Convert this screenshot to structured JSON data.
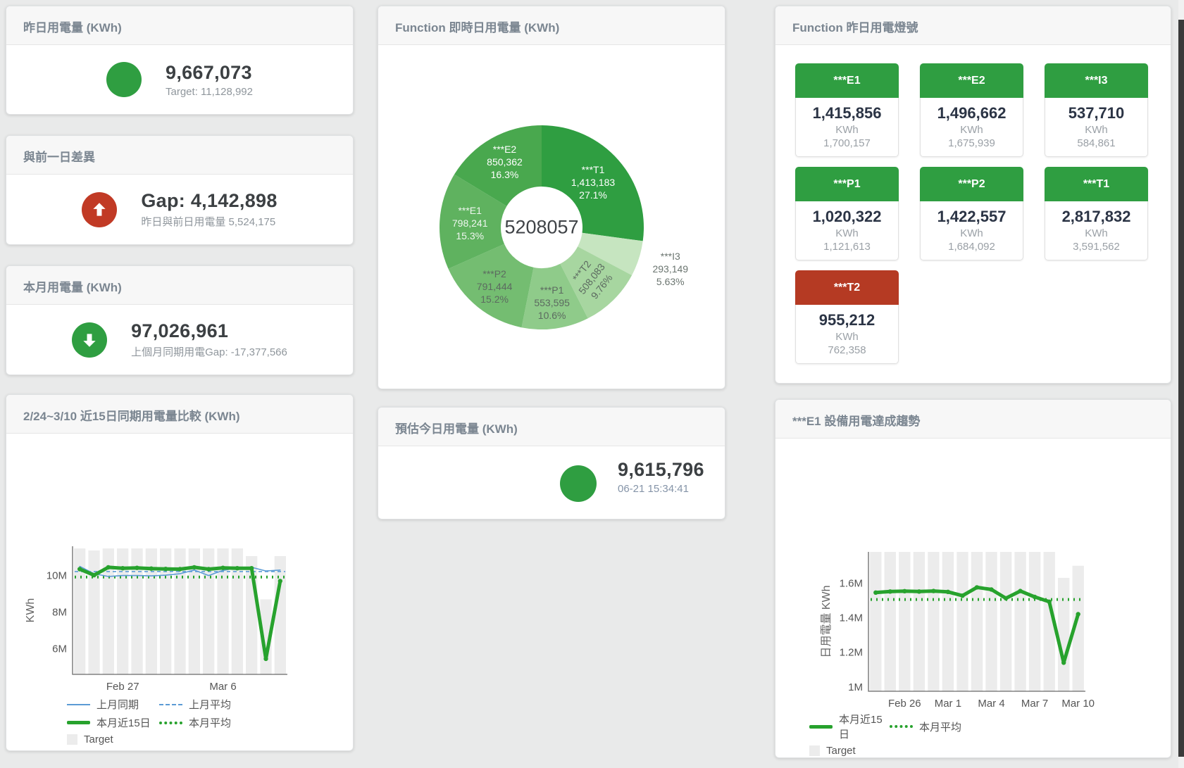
{
  "cards": {
    "yesterday": {
      "title": "昨日用電量 (KWh)",
      "value": "9,667,073",
      "sub": "Target: 11,128,992",
      "indicator_color": "#2f9e41"
    },
    "day_gap": {
      "title": "與前一日差異",
      "value": "Gap: 4,142,898",
      "sub": "昨日與前日用電量 5,524,175",
      "indicator_color": "#c13a25",
      "arrow": "up"
    },
    "month": {
      "title": "本月用電量 (KWh)",
      "value": "97,026,961",
      "sub": "上個月同期用電Gap: -17,377,566",
      "indicator_color": "#2f9e41",
      "arrow": "down"
    },
    "estimate": {
      "title": "預估今日用電量 (KWh)",
      "value": "9,615,796",
      "sub": "06-21 15:34:41",
      "indicator_color": "#2f9e41"
    }
  },
  "lights": {
    "title": "Function 昨日用電燈號",
    "unit": "KWh",
    "ok_color": "#2f9e41",
    "alert_color": "#b53a23",
    "tiles": [
      {
        "name": "***E1",
        "value": "1,415,856",
        "target": "1,700,157",
        "status_color": "#2f9e41"
      },
      {
        "name": "***E2",
        "value": "1,496,662",
        "target": "1,675,939",
        "status_color": "#2f9e41"
      },
      {
        "name": "***I3",
        "value": "537,710",
        "target": "584,861",
        "status_color": "#2f9e41"
      },
      {
        "name": "***P1",
        "value": "1,020,322",
        "target": "1,121,613",
        "status_color": "#2f9e41"
      },
      {
        "name": "***P2",
        "value": "1,422,557",
        "target": "1,684,092",
        "status_color": "#2f9e41"
      },
      {
        "name": "***T1",
        "value": "2,817,832",
        "target": "3,591,562",
        "status_color": "#2f9e41"
      },
      {
        "name": "***T2",
        "value": "955,212",
        "target": "762,358",
        "status_color": "#b53a23"
      }
    ]
  },
  "chart_data": [
    {
      "type": "pie",
      "title": "Function 即時日用電量 (KWh)",
      "center_total": "5208057",
      "slices": [
        {
          "name": "***T1",
          "value": 1413183,
          "pct": "27.1%",
          "color": "#2f9e41",
          "label_color": "#ffffff"
        },
        {
          "name": "***I3",
          "value": 293149,
          "pct": "5.63%",
          "color": "#c6e5c0",
          "label_color": "#6b7570",
          "outside": true
        },
        {
          "name": "***T2",
          "value": 508083,
          "pct": "9.76%",
          "color": "#a7d6a0",
          "label_color": "#5c6a60",
          "rotate": -52
        },
        {
          "name": "***P1",
          "value": 553595,
          "pct": "10.6%",
          "color": "#8fcb8a",
          "label_color": "#5c6a60"
        },
        {
          "name": "***P2",
          "value": 791444,
          "pct": "15.2%",
          "color": "#74bd71",
          "label_color": "#5c6a60"
        },
        {
          "name": "***E1",
          "value": 798241,
          "pct": "15.3%",
          "color": "#5fb25f",
          "label_color": "#eef6ef"
        },
        {
          "name": "***E2",
          "value": 850362,
          "pct": "16.3%",
          "color": "#49a84e",
          "label_color": "#ffffff"
        }
      ]
    },
    {
      "type": "line+bar",
      "title": "2/24~3/10 近15日同期用電量比較 (KWh)",
      "ylabel": "KWh",
      "x_count": 15,
      "ylim": [
        4600000,
        11600000
      ],
      "yticks": [
        {
          "value": 6000000,
          "label": "6M"
        },
        {
          "value": 8000000,
          "label": "8M"
        },
        {
          "value": 10000000,
          "label": "10M"
        }
      ],
      "xticks": [
        {
          "index": 3,
          "label": "Feb 27"
        },
        {
          "index": 10,
          "label": "Mar 6"
        }
      ],
      "bar_color": "#ececec",
      "target_bars": [
        11480000,
        11370000,
        11480000,
        11480000,
        11480000,
        11480000,
        11480000,
        11480000,
        11480000,
        11480000,
        11480000,
        11480000,
        11060000,
        8700000,
        11060000
      ],
      "series": [
        {
          "name": "上月同期",
          "color": "#5b9bd5",
          "width": 1.6,
          "values": [
            10500000,
            10100000,
            9950000,
            10000000,
            10000000,
            9980000,
            10020000,
            10100000,
            10300000,
            10000000,
            10280000,
            10420000,
            10450000,
            10250000,
            10300000
          ]
        },
        {
          "name": "本月近15日",
          "color": "#27a22d",
          "width": 5,
          "markers": true,
          "values": [
            10350000,
            10020000,
            10450000,
            10400000,
            10420000,
            10380000,
            10360000,
            10350000,
            10450000,
            10350000,
            10420000,
            10400000,
            10400000,
            5450000,
            9700000
          ]
        }
      ],
      "averages": [
        {
          "name": "上月平均",
          "value": 10220000,
          "color": "#5b9bd5",
          "dash": "5 4",
          "width": 1.6
        },
        {
          "name": "本月平均",
          "value": 9920000,
          "color": "#27a22d",
          "dash": "2 6",
          "width": 4
        }
      ],
      "legend": [
        "上月同期",
        "上月平均",
        "本月近15日",
        "本月平均",
        "Target"
      ]
    },
    {
      "type": "line+bar",
      "title": "***E1 設備用電達成趨勢",
      "ylabel": "日用電量 KWh",
      "x_count": 15,
      "ylim": [
        975000,
        1780000
      ],
      "yticks": [
        {
          "value": 1000000,
          "label": "1M"
        },
        {
          "value": 1200000,
          "label": "1.2M"
        },
        {
          "value": 1400000,
          "label": "1.4M"
        },
        {
          "value": 1600000,
          "label": "1.6M"
        }
      ],
      "xticks": [
        {
          "index": 2,
          "label": "Feb 26"
        },
        {
          "index": 5,
          "label": "Mar 1"
        },
        {
          "index": 8,
          "label": "Mar 4"
        },
        {
          "index": 11,
          "label": "Mar 7"
        },
        {
          "index": 14,
          "label": "Mar 10"
        }
      ],
      "bar_color": "#ececec",
      "target_bars": [
        1780000,
        1780000,
        1780000,
        1780000,
        1780000,
        1780000,
        1780000,
        1780000,
        1780000,
        1780000,
        1780000,
        1780000,
        1780000,
        1630000,
        1700000
      ],
      "series": [
        {
          "name": "本月近15日",
          "color": "#27a22d",
          "width": 5,
          "markers": true,
          "values": [
            1545000,
            1551000,
            1553000,
            1551000,
            1554000,
            1549000,
            1527000,
            1575000,
            1563000,
            1512000,
            1554000,
            1520000,
            1492000,
            1140000,
            1420000
          ]
        }
      ],
      "averages": [
        {
          "name": "本月平均",
          "value": 1505000,
          "color": "#27a22d",
          "dash": "2 6",
          "width": 4
        }
      ],
      "legend": [
        "本月近15日",
        "本月平均",
        "Target"
      ]
    }
  ]
}
